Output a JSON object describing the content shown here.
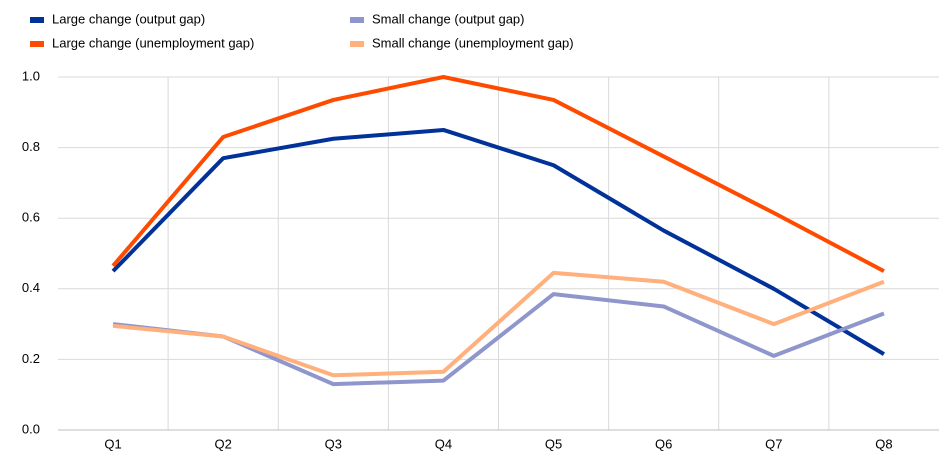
{
  "chart_data": {
    "type": "line",
    "categories": [
      "Q1",
      "Q2",
      "Q3",
      "Q4",
      "Q5",
      "Q6",
      "Q7",
      "Q8"
    ],
    "series": [
      {
        "name": "Large change (output gap)",
        "color": "#003299",
        "values": [
          0.45,
          0.77,
          0.825,
          0.85,
          0.75,
          0.565,
          0.4,
          0.215
        ]
      },
      {
        "name": "Large change (unemployment gap)",
        "color": "#ff4b00",
        "values": [
          0.465,
          0.83,
          0.935,
          1.0,
          0.935,
          0.775,
          0.615,
          0.45
        ]
      },
      {
        "name": "Small change (output gap)",
        "color": "#8e96cc",
        "values": [
          0.3,
          0.265,
          0.13,
          0.14,
          0.385,
          0.35,
          0.21,
          0.33
        ]
      },
      {
        "name": "Small change (unemployment gap)",
        "color": "#ffb07c",
        "values": [
          0.295,
          0.265,
          0.155,
          0.165,
          0.445,
          0.42,
          0.3,
          0.42
        ]
      }
    ],
    "ylim": [
      0,
      1
    ],
    "yticks": [
      {
        "value": 0,
        "label": "0.0"
      },
      0.2,
      0.4,
      0.6,
      0.8,
      {
        "value": 1,
        "label": "1.0"
      }
    ],
    "grid": true
  }
}
